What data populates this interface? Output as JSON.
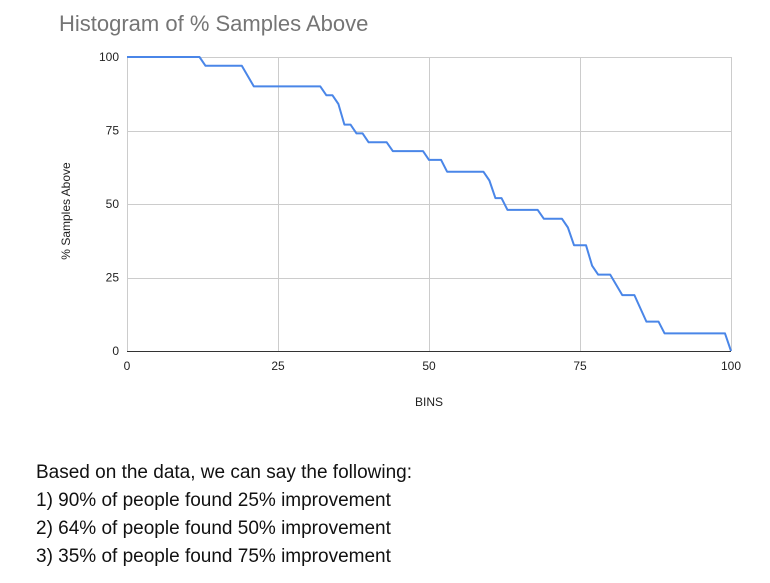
{
  "chart_data": {
    "type": "line",
    "title": "Histogram of % Samples Above",
    "xlabel": "BINS",
    "ylabel": "% Samples Above",
    "xlim": [
      0,
      100
    ],
    "ylim": [
      0,
      100
    ],
    "x_ticks": [
      0,
      25,
      50,
      75,
      100
    ],
    "y_ticks": [
      0,
      25,
      50,
      75,
      100
    ],
    "grid": true,
    "legend": "none",
    "series": [
      {
        "color": "#4a86e8",
        "points": [
          [
            0,
            100
          ],
          [
            12,
            100
          ],
          [
            13,
            97
          ],
          [
            19,
            97
          ],
          [
            21,
            90
          ],
          [
            32,
            90
          ],
          [
            33,
            87
          ],
          [
            34,
            87
          ],
          [
            35,
            84
          ],
          [
            36,
            77
          ],
          [
            37,
            77
          ],
          [
            38,
            74
          ],
          [
            39,
            74
          ],
          [
            40,
            71
          ],
          [
            43,
            71
          ],
          [
            44,
            68
          ],
          [
            49,
            68
          ],
          [
            50,
            65
          ],
          [
            52,
            65
          ],
          [
            53,
            61
          ],
          [
            59,
            61
          ],
          [
            60,
            58
          ],
          [
            61,
            52
          ],
          [
            62,
            52
          ],
          [
            63,
            48
          ],
          [
            68,
            48
          ],
          [
            69,
            45
          ],
          [
            72,
            45
          ],
          [
            73,
            42
          ],
          [
            74,
            36
          ],
          [
            76,
            36
          ],
          [
            77,
            29
          ],
          [
            78,
            26
          ],
          [
            80,
            26
          ],
          [
            82,
            19
          ],
          [
            84,
            19
          ],
          [
            86,
            10
          ],
          [
            88,
            10
          ],
          [
            89,
            6
          ],
          [
            99,
            6
          ],
          [
            100,
            0
          ]
        ]
      }
    ]
  },
  "notes": {
    "intro": "Based on the data, we can say the following:",
    "items": [
      "1) 90% of people found 25% improvement",
      "2) 64% of people found 50% improvement",
      "3) 35% of people found 75% improvement"
    ]
  }
}
